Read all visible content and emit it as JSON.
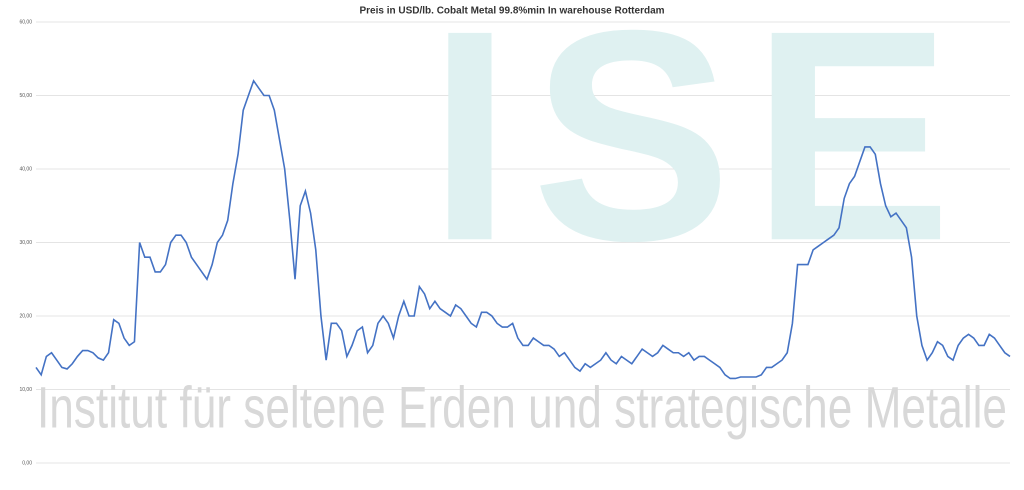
{
  "chart_data": {
    "type": "line",
    "title": "Preis in USD/lb.  Cobalt Metal 99.8%min In warehouse Rotterdam",
    "watermark": "Institut für seltene Erden und strategische Metalle",
    "logo": "ISE",
    "series": [
      {
        "name": "Cobalt Metal 99.8%min",
        "color": "#4472c4",
        "values": [
          13,
          12,
          14.5,
          15,
          14,
          13,
          12.8,
          13.5,
          14.5,
          15.3,
          15.3,
          15,
          14.3,
          14,
          15,
          19.5,
          19,
          17,
          16,
          16.5,
          30,
          28,
          28,
          26,
          26,
          27,
          30,
          31,
          31,
          30,
          28,
          27,
          26,
          25,
          27,
          30,
          31,
          33,
          38,
          42,
          48,
          50,
          52,
          51,
          50,
          50,
          48,
          44,
          40,
          33,
          25,
          35,
          37,
          34,
          29,
          20,
          14,
          19,
          19,
          18,
          14.5,
          16,
          18,
          18.5,
          15,
          16,
          19,
          20,
          19,
          17,
          20,
          22,
          20,
          20,
          24,
          23,
          21,
          22,
          21,
          20.5,
          20,
          21.5,
          21,
          20,
          19,
          18.5,
          20.5,
          20.5,
          20,
          19,
          18.5,
          18.5,
          19,
          17,
          16,
          16,
          17,
          16.5,
          16,
          16,
          15.5,
          14.5,
          15,
          14,
          13,
          12.5,
          13.5,
          13,
          13.5,
          14,
          15,
          14,
          13.5,
          14.5,
          14,
          13.5,
          14.5,
          15.5,
          15,
          14.5,
          15,
          16,
          15.5,
          15,
          15,
          14.5,
          15,
          14,
          14.5,
          14.5,
          14,
          13.5,
          13,
          12,
          11.5,
          11.5,
          11.7,
          11.7,
          11.7,
          11.7,
          12,
          13,
          13,
          13.5,
          14,
          15,
          19,
          27,
          27,
          27,
          29,
          29.5,
          30,
          30.5,
          31,
          32,
          36,
          38,
          39,
          41,
          43,
          43,
          42,
          38,
          35,
          33.5,
          34,
          33,
          32,
          28,
          20,
          16,
          14,
          15,
          16.5,
          16,
          14.5,
          14,
          16,
          17,
          17.5,
          17,
          16,
          16,
          17.5,
          17,
          16,
          15,
          14.5
        ]
      }
    ],
    "ylim": [
      0,
      60
    ],
    "yticks": [
      {
        "value": 0,
        "label": "0,00"
      },
      {
        "value": 10,
        "label": "10,00"
      },
      {
        "value": 20,
        "label": "20,00"
      },
      {
        "value": 30,
        "label": "30,00"
      },
      {
        "value": 40,
        "label": "40,00"
      },
      {
        "value": 50,
        "label": "50,00"
      },
      {
        "value": 60,
        "label": "60,00"
      }
    ],
    "grid": true
  }
}
